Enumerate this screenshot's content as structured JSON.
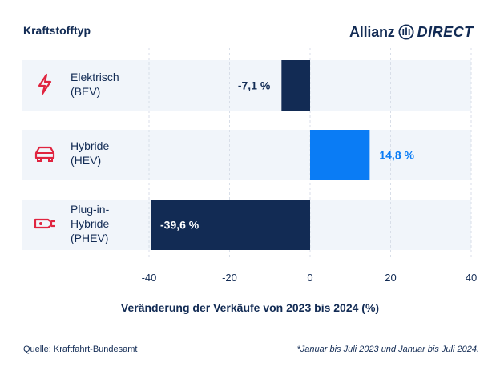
{
  "header": {
    "title": "Kraftstofftyp"
  },
  "brand": {
    "name": "Allianz",
    "sub": "DIRECT"
  },
  "rows": [
    {
      "label_lines": [
        "Elektrisch",
        "(BEV)"
      ],
      "icon": "lightning-icon"
    },
    {
      "label_lines": [
        "Hybride",
        "(HEV)"
      ],
      "icon": "car-icon"
    },
    {
      "label_lines": [
        "Plug-in-",
        "Hybride",
        "(PHEV)"
      ],
      "icon": "plug-icon"
    }
  ],
  "chart_data": {
    "type": "bar",
    "orientation": "horizontal",
    "categories": [
      "Elektrisch (BEV)",
      "Hybride (HEV)",
      "Plug-in-Hybride (PHEV)"
    ],
    "values": [
      -7.1,
      14.8,
      -39.6
    ],
    "value_labels": [
      "-7,1 %",
      "14,8 %",
      "-39,6 %"
    ],
    "colors": [
      "#122b54",
      "#0a7cf5",
      "#122b54"
    ],
    "label_colors": [
      "#122b54",
      "#0a7cf5",
      "#ffffff"
    ],
    "label_placement": [
      "outside",
      "outside",
      "inside"
    ],
    "xlim": [
      -40,
      40
    ],
    "xticks": [
      -40,
      -20,
      0,
      20,
      40
    ],
    "xtick_labels": [
      "-40",
      "-20",
      "0",
      "20",
      "40"
    ],
    "xlabel": "Veränderung der Verkäufe von 2023 bis 2024 (%)",
    "title": "Kraftstofftyp",
    "grid": true
  },
  "footer": {
    "source": "Quelle: Kraftfahrt-Bundesamt",
    "note": "*Januar bis Juli 2023 und Januar bis Juli 2024."
  },
  "colors": {
    "navy": "#122b54",
    "blue": "#0a7cf5",
    "icon_red": "#e0243f",
    "band": "#f1f5fa",
    "grid": "#d8dee8"
  }
}
